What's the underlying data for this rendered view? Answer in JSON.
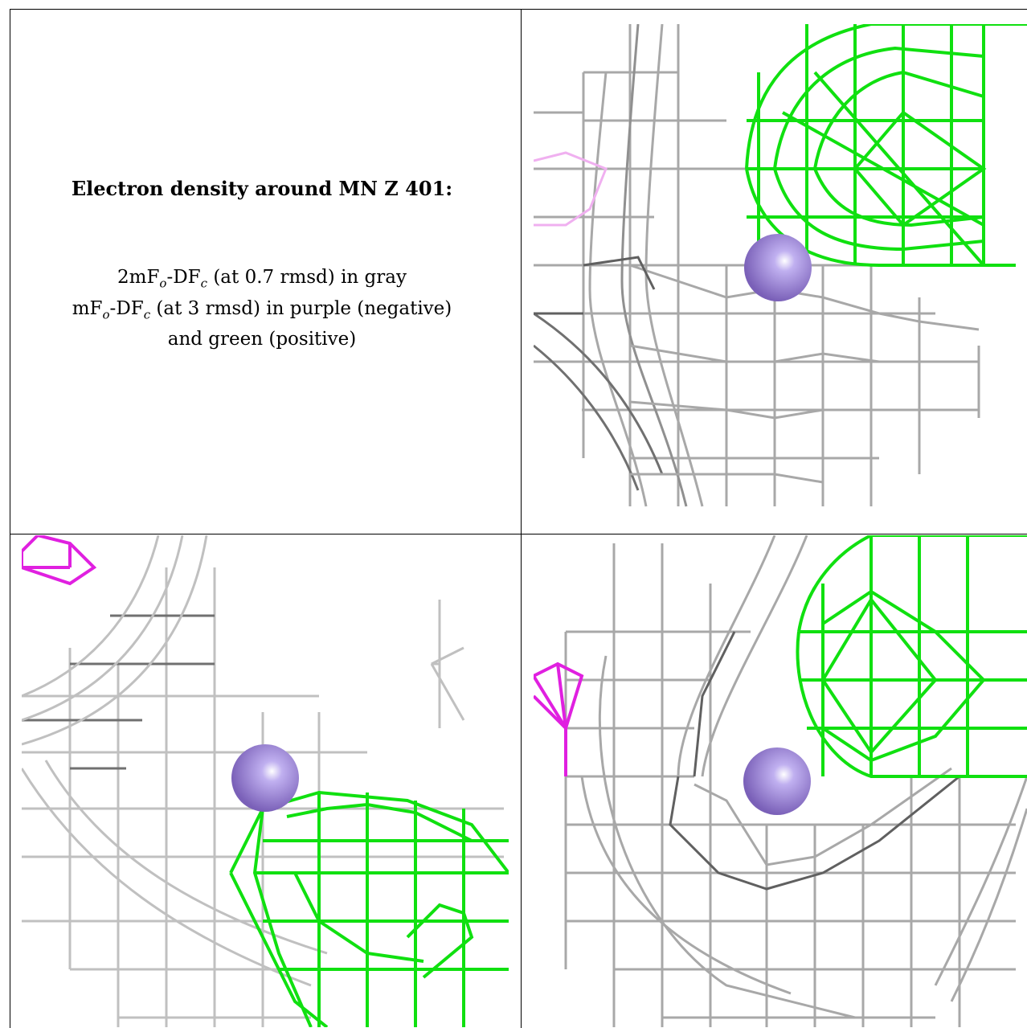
{
  "title": "Electron density around MN Z 401:",
  "legend": {
    "line1_a": "2mF",
    "line1_sub_o": "o",
    "line1_b": "-DF",
    "line1_sub_c": "c",
    "line1_c": " (at 0.7 rmsd) in gray",
    "line2_a": "mF",
    "line2_sub_o": "o",
    "line2_b": "-DF",
    "line2_sub_c": "c",
    "line2_c": " (at 3 rmsd) in purple (negative)",
    "line3": "and green (positive)"
  },
  "colors": {
    "map_2fofc": "#a0a0a0",
    "map_fofc_negative": "#e020e0",
    "map_fofc_positive": "#10e010",
    "ion": "#9a80d0"
  },
  "panels": [
    {
      "view": "view-1",
      "ion_icon": "manganese-ion-sphere"
    },
    {
      "view": "view-2",
      "ion_icon": "manganese-ion-sphere"
    },
    {
      "view": "view-3",
      "ion_icon": "manganese-ion-sphere"
    }
  ]
}
